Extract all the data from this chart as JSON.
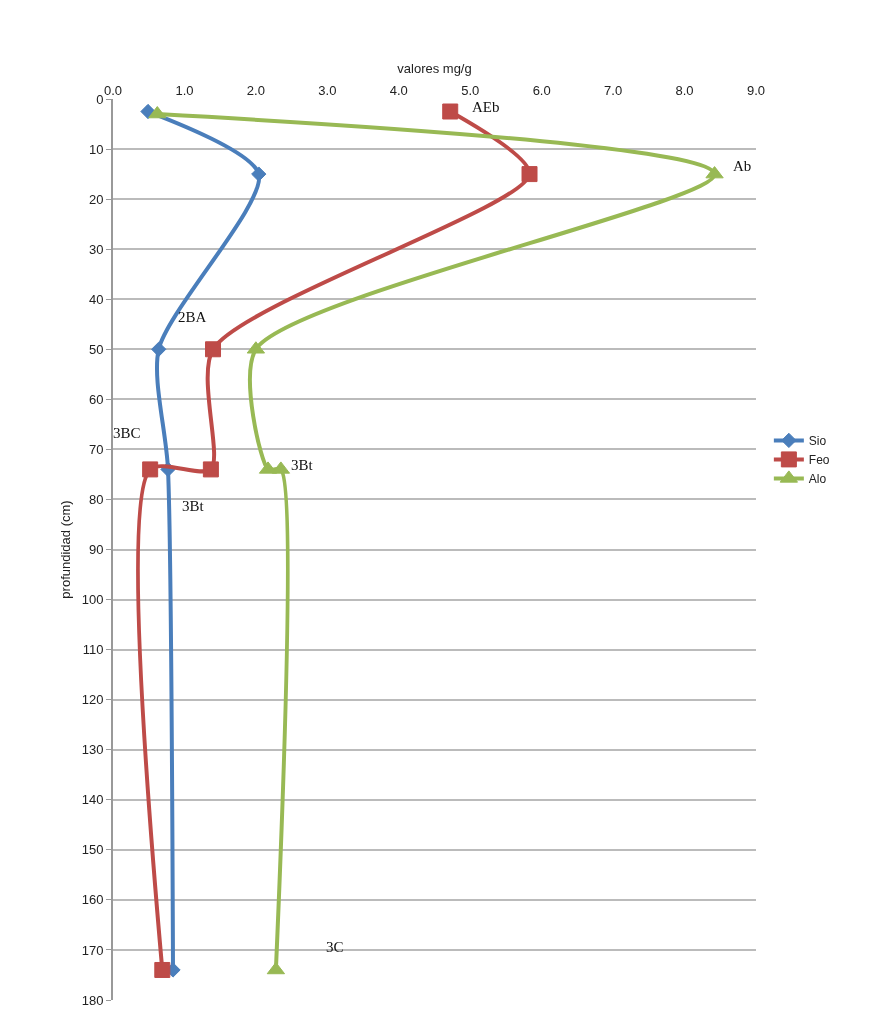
{
  "chart_data": {
    "type": "line",
    "xlabel": "valores mg/g",
    "ylabel": "profundidad (cm)",
    "xlim": [
      0,
      9
    ],
    "xticks": [
      {
        "value": 0,
        "label": "0.0"
      },
      {
        "value": 1,
        "label": "1.0"
      },
      {
        "value": 2,
        "label": "2.0"
      },
      {
        "value": 3,
        "label": "3.0"
      },
      {
        "value": 4,
        "label": "4.0"
      },
      {
        "value": 5,
        "label": "5.0"
      },
      {
        "value": 6,
        "label": "6.0"
      },
      {
        "value": 7,
        "label": "7.0"
      },
      {
        "value": 8,
        "label": "8.0"
      },
      {
        "value": 9,
        "label": "9.0"
      }
    ],
    "ylim": [
      180,
      0
    ],
    "yticks": [
      0,
      10,
      20,
      30,
      40,
      50,
      60,
      70,
      80,
      90,
      100,
      110,
      120,
      130,
      140,
      150,
      160,
      170,
      180
    ],
    "grid": "y",
    "legend": "right",
    "line_style": "solid",
    "series": [
      {
        "name": "Sio",
        "color": "#4a7ebb",
        "marker": "diamond",
        "x": [
          0.49,
          2.04,
          0.64,
          0.77,
          0.84
        ],
        "values": [
          2.5,
          15,
          50,
          74,
          174
        ]
      },
      {
        "name": "Feo",
        "color": "#be4b48",
        "marker": "square",
        "x": [
          4.72,
          5.83,
          1.4,
          1.37,
          0.52,
          0.69
        ],
        "values": [
          2.5,
          15,
          50,
          74,
          74,
          174
        ]
      },
      {
        "name": "Alo",
        "color": "#98b954",
        "marker": "triangle",
        "x": [
          0.62,
          8.42,
          2.0,
          2.17,
          2.35,
          2.28
        ],
        "values": [
          3,
          15,
          50,
          74,
          74,
          174
        ]
      }
    ],
    "annotations": [
      {
        "text": "AEb",
        "x": 4.72,
        "y": 2.5
      },
      {
        "text": "Ab",
        "x": 8.42,
        "y": 15
      },
      {
        "text": "2BA",
        "x": 0.64,
        "y": 50
      },
      {
        "text": "3BC",
        "x": 0.52,
        "y": 74
      },
      {
        "text": "3Bt",
        "x": 2.35,
        "y": 74
      },
      {
        "text": "3Bt",
        "x": 0.77,
        "y": 74
      },
      "3C"
    ]
  }
}
